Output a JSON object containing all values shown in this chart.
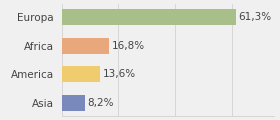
{
  "categories": [
    "Europa",
    "Africa",
    "America",
    "Asia"
  ],
  "values": [
    61.3,
    16.8,
    13.6,
    8.2
  ],
  "labels": [
    "61,3%",
    "16,8%",
    "13,6%",
    "8,2%"
  ],
  "bar_colors": [
    "#a8bf8a",
    "#e8a87c",
    "#f0cc6e",
    "#7a89bb"
  ],
  "background_color": "#f0f0f0",
  "xlim": [
    0,
    75
  ],
  "label_fontsize": 7.5,
  "tick_fontsize": 7.5
}
